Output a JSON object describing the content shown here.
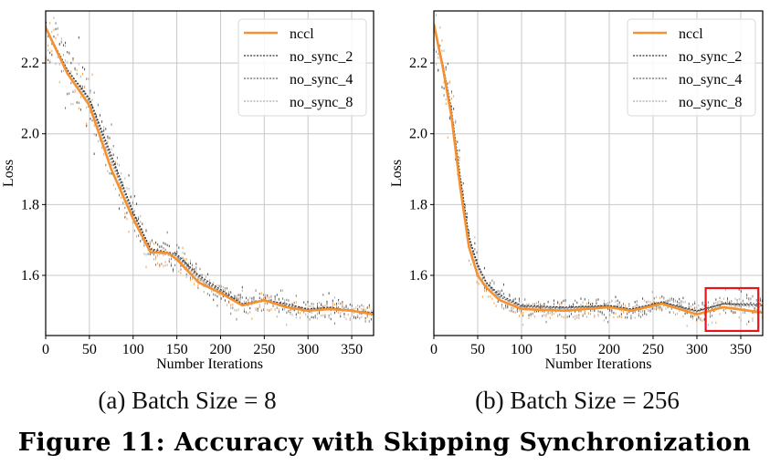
{
  "chart_data": [
    {
      "type": "line",
      "caption": "(a) Batch Size = 8",
      "xlabel": "Number Iterations",
      "ylabel": "Loss",
      "xlim": [
        0,
        375
      ],
      "ylim": [
        1.43,
        2.347
      ],
      "xticks": [
        "0",
        "50",
        "100",
        "150",
        "200",
        "250",
        "300",
        "350"
      ],
      "yticks": [
        "1.6",
        "1.8",
        "2.0",
        "2.2"
      ],
      "grid": true,
      "legend": "top-right",
      "series": [
        {
          "name": "nccl",
          "color": "#f5912f",
          "style": "solid",
          "x": [
            0,
            25,
            50,
            75,
            100,
            120,
            140,
            150,
            175,
            200,
            225,
            250,
            275,
            300,
            325,
            350,
            375
          ],
          "y": [
            2.3,
            2.17,
            2.08,
            1.9,
            1.76,
            1.665,
            1.663,
            1.645,
            1.58,
            1.55,
            1.515,
            1.53,
            1.51,
            1.5,
            1.505,
            1.5,
            1.49
          ]
        },
        {
          "name": "no_sync_2",
          "color": "#333333",
          "style": "dotted",
          "x": [
            0,
            25,
            50,
            75,
            100,
            120,
            150,
            175,
            200,
            225,
            250,
            275,
            300,
            325,
            350,
            375
          ],
          "y": [
            2.3,
            2.18,
            2.1,
            1.94,
            1.78,
            1.675,
            1.66,
            1.6,
            1.56,
            1.52,
            1.53,
            1.52,
            1.505,
            1.51,
            1.5,
            1.495
          ]
        },
        {
          "name": "no_sync_4",
          "color": "#666666",
          "style": "dotted",
          "x": [
            0,
            25,
            50,
            75,
            100,
            120,
            150,
            175,
            200,
            225,
            250,
            275,
            300,
            325,
            350,
            375
          ],
          "y": [
            2.3,
            2.18,
            2.095,
            1.93,
            1.775,
            1.672,
            1.655,
            1.595,
            1.555,
            1.518,
            1.53,
            1.515,
            1.503,
            1.508,
            1.5,
            1.493
          ]
        },
        {
          "name": "no_sync_8",
          "color": "#aaaaaa",
          "style": "dotted",
          "x": [
            0,
            25,
            50,
            75,
            100,
            120,
            150,
            175,
            200,
            225,
            250,
            275,
            300,
            325,
            350,
            375
          ],
          "y": [
            2.3,
            2.175,
            2.09,
            1.92,
            1.77,
            1.67,
            1.65,
            1.59,
            1.552,
            1.516,
            1.528,
            1.512,
            1.5,
            1.506,
            1.5,
            1.49
          ]
        }
      ]
    },
    {
      "type": "line",
      "caption": "(b) Batch Size = 256",
      "xlabel": "Number Iterations",
      "ylabel": "Loss",
      "xlim": [
        0,
        375
      ],
      "ylim": [
        1.43,
        2.347
      ],
      "xticks": [
        "0",
        "50",
        "100",
        "150",
        "200",
        "250",
        "300",
        "350"
      ],
      "yticks": [
        "1.6",
        "1.8",
        "2.0",
        "2.2"
      ],
      "grid": true,
      "legend": "top-right",
      "highlight_box": {
        "x": [
          310,
          370
        ],
        "y": [
          1.443,
          1.564
        ],
        "color": "#e8141c"
      },
      "series": [
        {
          "name": "nccl",
          "color": "#f5912f",
          "style": "solid",
          "x": [
            0,
            10,
            20,
            30,
            40,
            50,
            60,
            75,
            100,
            150,
            200,
            225,
            260,
            300,
            330,
            375
          ],
          "y": [
            2.31,
            2.19,
            2.05,
            1.85,
            1.68,
            1.6,
            1.565,
            1.53,
            1.505,
            1.5,
            1.51,
            1.5,
            1.52,
            1.49,
            1.51,
            1.495
          ]
        },
        {
          "name": "no_sync_2",
          "color": "#333333",
          "style": "dotted",
          "x": [
            0,
            10,
            20,
            30,
            40,
            50,
            60,
            75,
            100,
            150,
            200,
            225,
            260,
            300,
            330,
            375
          ],
          "y": [
            2.31,
            2.2,
            2.07,
            1.88,
            1.71,
            1.63,
            1.58,
            1.545,
            1.515,
            1.51,
            1.515,
            1.505,
            1.525,
            1.5,
            1.52,
            1.515
          ]
        },
        {
          "name": "no_sync_4",
          "color": "#666666",
          "style": "dotted",
          "x": [
            0,
            10,
            20,
            30,
            40,
            50,
            60,
            75,
            100,
            150,
            200,
            225,
            260,
            300,
            330,
            375
          ],
          "y": [
            2.31,
            2.2,
            2.065,
            1.875,
            1.705,
            1.625,
            1.578,
            1.54,
            1.512,
            1.508,
            1.513,
            1.503,
            1.523,
            1.498,
            1.52,
            1.52
          ]
        },
        {
          "name": "no_sync_8",
          "color": "#aaaaaa",
          "style": "dotted",
          "x": [
            0,
            10,
            20,
            30,
            40,
            50,
            60,
            75,
            100,
            150,
            200,
            225,
            260,
            300,
            330,
            375
          ],
          "y": [
            2.31,
            2.195,
            2.06,
            1.87,
            1.7,
            1.62,
            1.575,
            1.538,
            1.51,
            1.506,
            1.512,
            1.502,
            1.522,
            1.497,
            1.518,
            1.51
          ]
        }
      ]
    }
  ],
  "figure_caption": "Figure 11: Accuracy with Skipping Synchronization"
}
